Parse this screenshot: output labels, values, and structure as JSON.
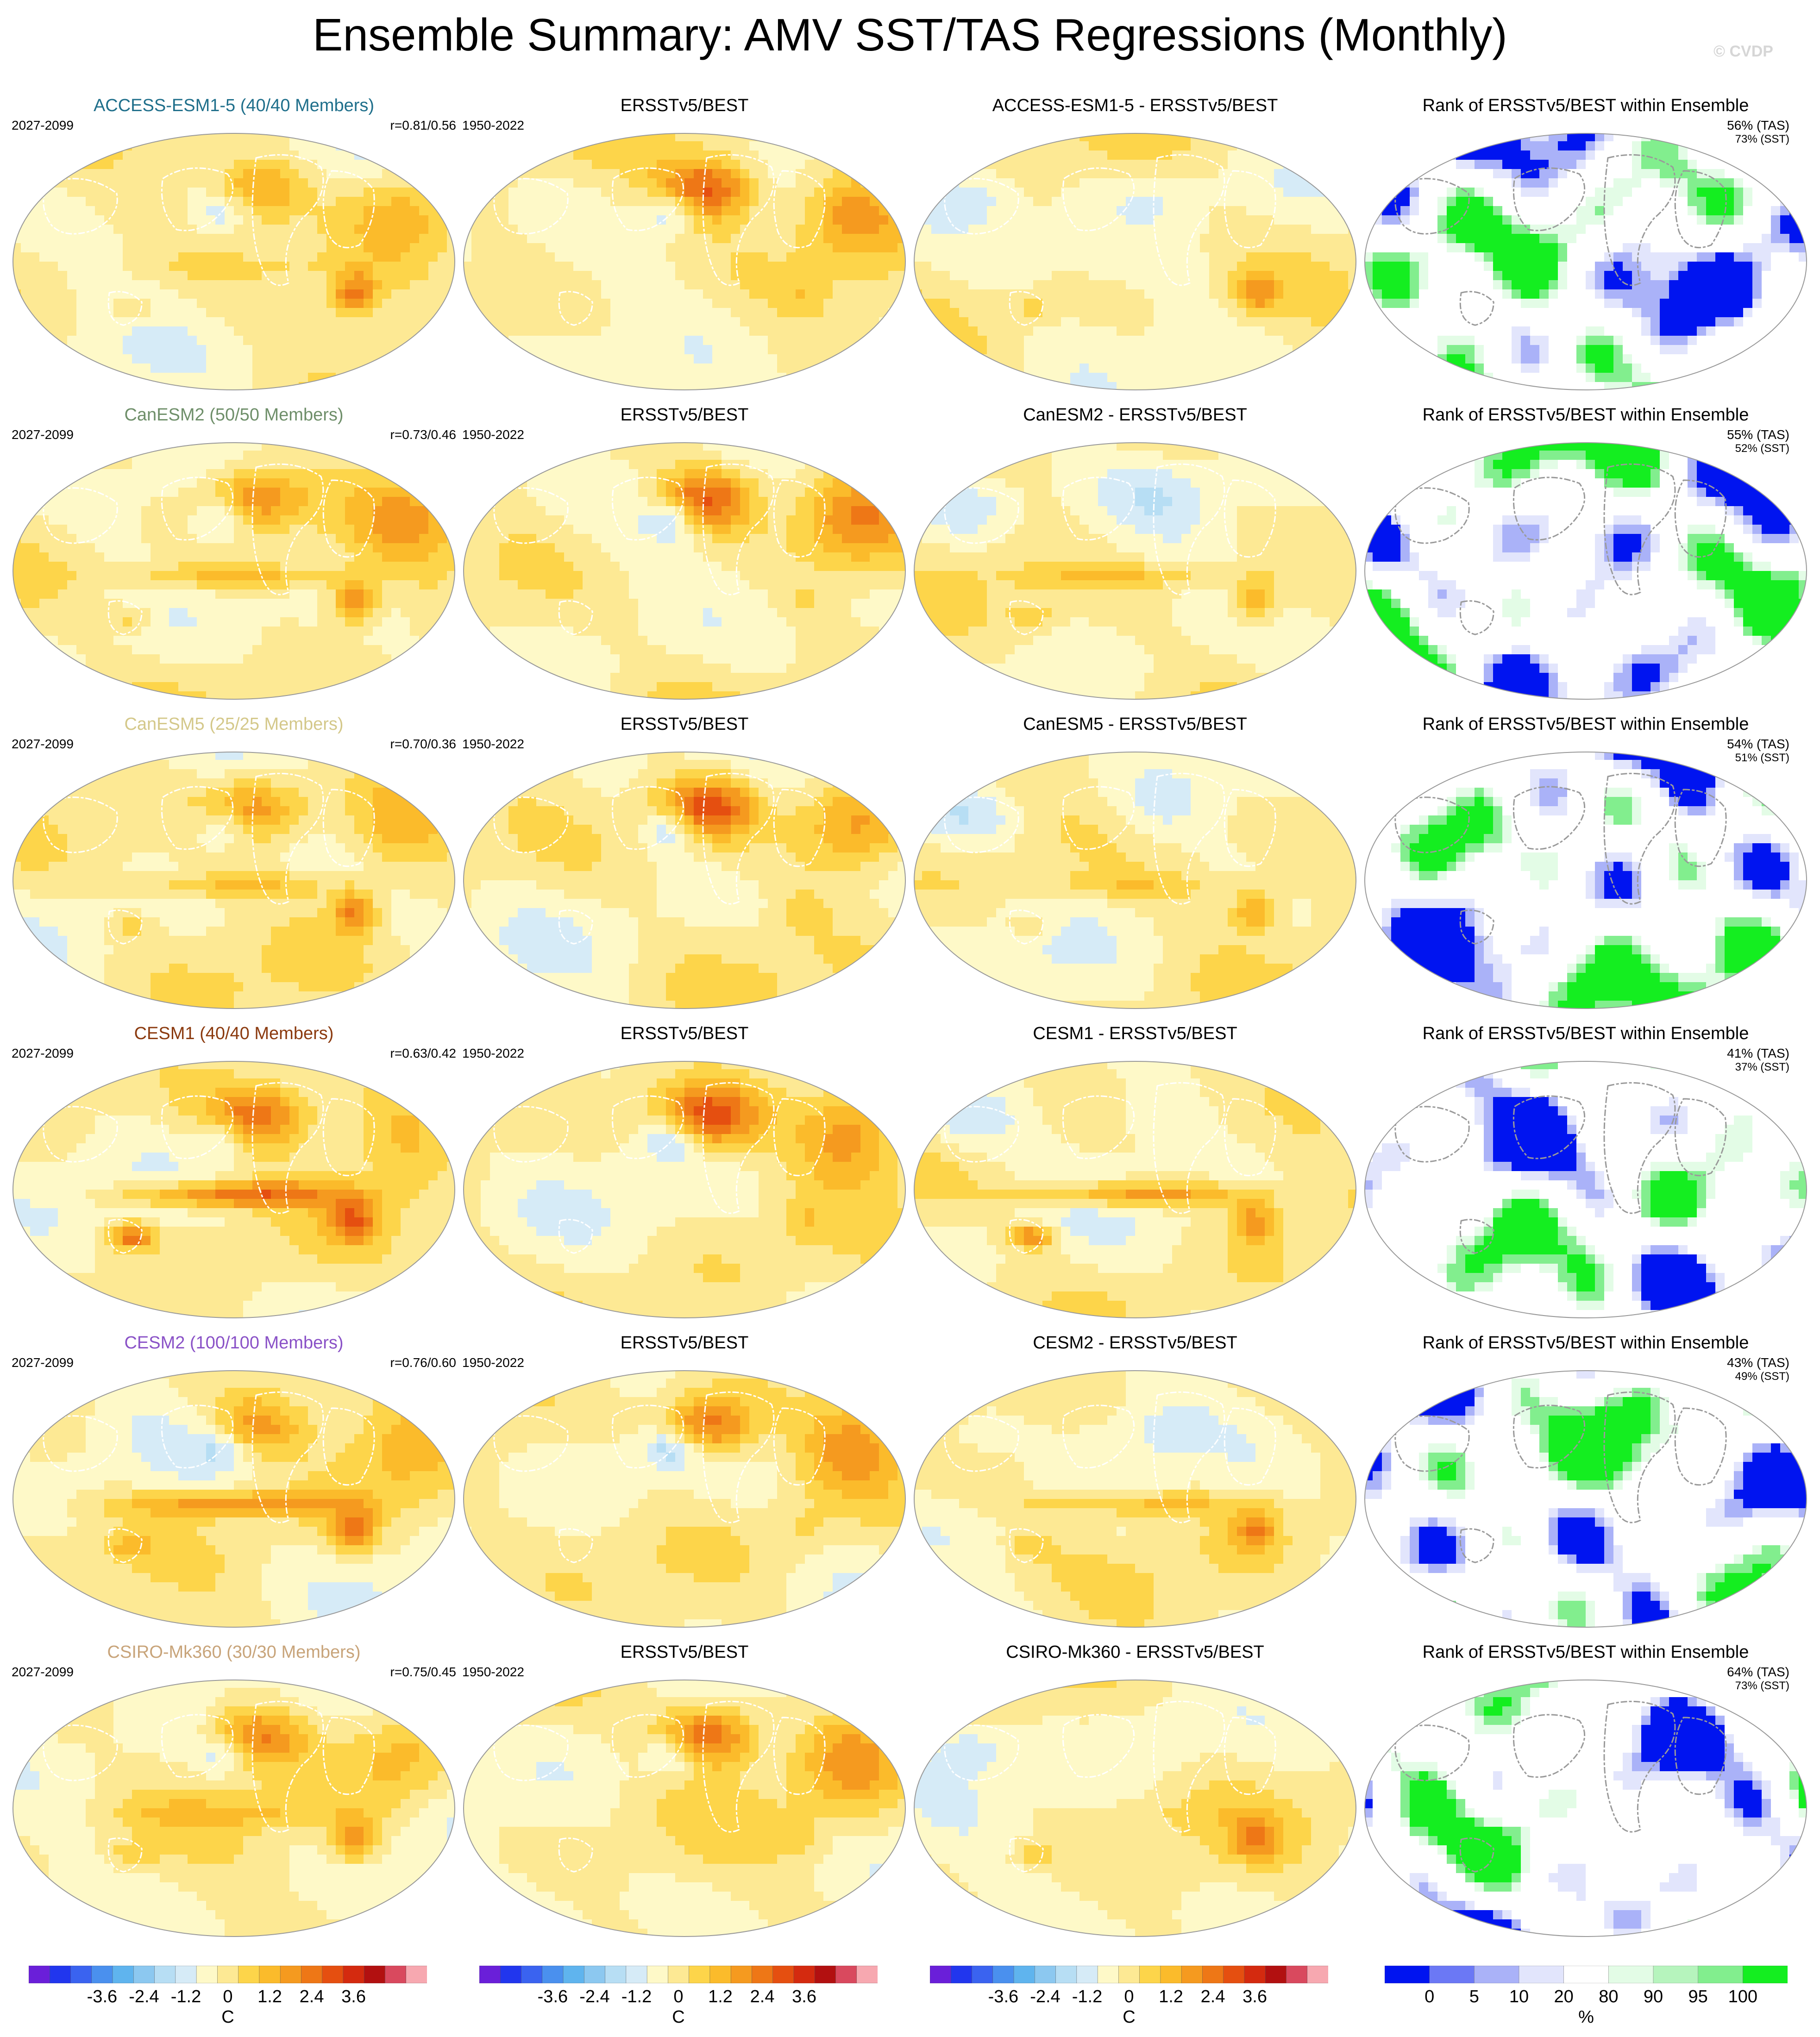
{
  "title": "Ensemble Summary: AMV SST/TAS Regressions (Monthly)",
  "watermark": "© CVDP",
  "colors": {
    "ramp_diverging": [
      "#6a1fd9",
      "#2136ee",
      "#3a63f0",
      "#4a90ee",
      "#5fb4ee",
      "#8cc8f0",
      "#b7def4",
      "#d6ebf7",
      "#fef9c8",
      "#fde994",
      "#fdd54a",
      "#fbbb2b",
      "#f59a1f",
      "#ee7716",
      "#e54f10",
      "#d42a0f",
      "#b21010",
      "#d9495e",
      "#f7a8b0"
    ],
    "ramp_rank": [
      "#0014f0",
      "#6b78f5",
      "#aab2f8",
      "#e2e5fc",
      "#ffffff",
      "#e3fce6",
      "#b6f4bd",
      "#82ee8e",
      "#14ee20"
    ],
    "land_outline": "#ffffff",
    "model_title_colors": [
      "#1f6f8b",
      "#6f8f6a",
      "#d4c88a",
      "#8b3a0f",
      "#8a52c7",
      "#c8a47a"
    ]
  },
  "rows": [
    {
      "model_title": "ACCESS-ESM1-5 (40/40 Members)",
      "model": "ACCESS-ESM1-5",
      "model_period": "2027-2099",
      "corr": "r=0.81/0.56",
      "obs_title": "ERSSTv5/BEST",
      "obs_period": "1950-2022",
      "diff_title": "ACCESS-ESM1-5 - ERSSTv5/BEST",
      "rank_title": "Rank of ERSSTv5/BEST within Ensemble",
      "rank_tas": "56% (TAS)",
      "rank_sst": "73% (SST)"
    },
    {
      "model_title": "CanESM2 (50/50 Members)",
      "model": "CanESM2",
      "model_period": "2027-2099",
      "corr": "r=0.73/0.46",
      "obs_title": "ERSSTv5/BEST",
      "obs_period": "1950-2022",
      "diff_title": "CanESM2 - ERSSTv5/BEST",
      "rank_title": "Rank of ERSSTv5/BEST within Ensemble",
      "rank_tas": "55% (TAS)",
      "rank_sst": "52% (SST)"
    },
    {
      "model_title": "CanESM5 (25/25 Members)",
      "model": "CanESM5",
      "model_period": "2027-2099",
      "corr": "r=0.70/0.36",
      "obs_title": "ERSSTv5/BEST",
      "obs_period": "1950-2022",
      "diff_title": "CanESM5 - ERSSTv5/BEST",
      "rank_title": "Rank of ERSSTv5/BEST within Ensemble",
      "rank_tas": "54% (TAS)",
      "rank_sst": "51% (SST)"
    },
    {
      "model_title": "CESM1 (40/40 Members)",
      "model": "CESM1",
      "model_period": "2027-2099",
      "corr": "r=0.63/0.42",
      "obs_title": "ERSSTv5/BEST",
      "obs_period": "1950-2022",
      "diff_title": "CESM1 - ERSSTv5/BEST",
      "rank_title": "Rank of ERSSTv5/BEST within Ensemble",
      "rank_tas": "41% (TAS)",
      "rank_sst": "37% (SST)"
    },
    {
      "model_title": "CESM2 (100/100 Members)",
      "model": "CESM2",
      "model_period": "2027-2099",
      "corr": "r=0.76/0.60",
      "obs_title": "ERSSTv5/BEST",
      "obs_period": "1950-2022",
      "diff_title": "CESM2 - ERSSTv5/BEST",
      "rank_title": "Rank of ERSSTv5/BEST within Ensemble",
      "rank_tas": "43% (TAS)",
      "rank_sst": "49% (SST)"
    },
    {
      "model_title": "CSIRO-Mk360 (30/30 Members)",
      "model": "CSIRO-Mk360",
      "model_period": "2027-2099",
      "corr": "r=0.75/0.45",
      "obs_title": "ERSSTv5/BEST",
      "obs_period": "1950-2022",
      "diff_title": "CSIRO-Mk360 - ERSSTv5/BEST",
      "rank_title": "Rank of ERSSTv5/BEST within Ensemble",
      "rank_tas": "64% (TAS)",
      "rank_sst": "73% (SST)"
    }
  ],
  "colorbars": {
    "regression_ticks": [
      "-3.6",
      "-2.4",
      "-1.2",
      "0",
      "1.2",
      "2.4",
      "3.6"
    ],
    "regression_unit": "C",
    "rank_ticks": [
      "0",
      "5",
      "10",
      "20",
      "80",
      "90",
      "95",
      "100"
    ],
    "rank_unit": "%"
  },
  "chart_data": {
    "type": "heatmap",
    "title": "Ensemble Summary: AMV SST/TAS Regressions (Monthly)",
    "projection": "Robinson-style global maps, 6 rows x 4 columns",
    "columns": [
      "model ensemble mean",
      "ERSSTv5/BEST",
      "model - ERSSTv5/BEST",
      "Rank of ERSSTv5/BEST within Ensemble"
    ],
    "rows": [
      "ACCESS-ESM1-5",
      "CanESM2",
      "CanESM5",
      "CESM1",
      "CESM2",
      "CSIRO-Mk360"
    ],
    "correlations": [
      "r=0.81/0.56",
      "r=0.73/0.46",
      "r=0.70/0.36",
      "r=0.63/0.42",
      "r=0.76/0.60",
      "r=0.75/0.45"
    ],
    "rank_tas_pct": [
      56,
      55,
      54,
      41,
      43,
      64
    ],
    "rank_sst_pct": [
      73,
      52,
      51,
      37,
      49,
      73
    ],
    "regression_colorbar": {
      "min": -4.2,
      "max": 4.2,
      "ticks": [
        -3.6,
        -2.4,
        -1.2,
        0,
        1.2,
        2.4,
        3.6
      ],
      "unit": "C"
    },
    "rank_colorbar": {
      "ticks": [
        0,
        5,
        10,
        20,
        80,
        90,
        95,
        100
      ],
      "unit": "%"
    }
  }
}
